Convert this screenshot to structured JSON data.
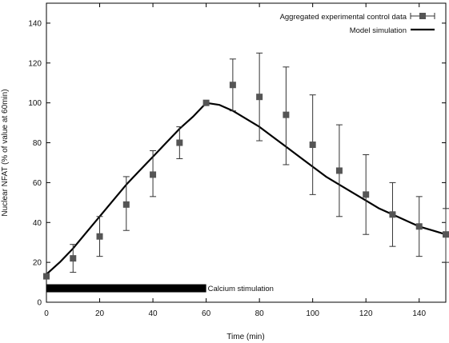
{
  "chart_data": {
    "type": "line",
    "title": "",
    "xlabel": "Time (min)",
    "ylabel": "Nuclear NFAT (% of value at 60min)",
    "xlim": [
      0,
      150
    ],
    "ylim": [
      0,
      150
    ],
    "xticks": [
      0,
      20,
      40,
      60,
      80,
      100,
      120,
      140
    ],
    "yticks": [
      0,
      20,
      40,
      60,
      80,
      100,
      120,
      140
    ],
    "grid": false,
    "legend_position": "top-right",
    "series": [
      {
        "name": "Aggregated experimental control data",
        "kind": "scatter-errorbar",
        "marker": "square",
        "color": "#555555",
        "x": [
          0,
          10,
          20,
          30,
          40,
          50,
          60,
          70,
          80,
          90,
          100,
          110,
          120,
          130,
          140,
          150
        ],
        "y": [
          13,
          22,
          33,
          49,
          64,
          80,
          100,
          109,
          103,
          94,
          79,
          66,
          54,
          44,
          38,
          34
        ],
        "err_low": [
          0,
          7,
          10,
          13,
          11,
          8,
          0,
          13,
          22,
          25,
          25,
          23,
          20,
          16,
          15,
          14
        ],
        "err_high": [
          0,
          7,
          10,
          14,
          12,
          8,
          0,
          13,
          22,
          24,
          25,
          23,
          20,
          16,
          15,
          13
        ]
      },
      {
        "name": "Model simulation",
        "kind": "line",
        "color": "#000000",
        "x": [
          0,
          5,
          10,
          15,
          20,
          25,
          30,
          35,
          40,
          45,
          50,
          55,
          60,
          65,
          70,
          75,
          80,
          85,
          90,
          95,
          100,
          105,
          110,
          115,
          120,
          125,
          130,
          135,
          140,
          145,
          150
        ],
        "y": [
          14,
          20,
          27,
          35,
          43,
          51,
          59,
          66,
          73,
          80,
          87,
          93,
          100,
          99,
          96,
          92,
          88,
          83,
          78,
          73,
          68,
          63,
          59,
          55,
          51,
          47,
          44,
          41,
          38,
          36,
          34
        ]
      }
    ],
    "annotations": [
      {
        "text": "Calcium stimulation",
        "x_start": 0,
        "x_end": 60,
        "y": 7
      }
    ]
  }
}
